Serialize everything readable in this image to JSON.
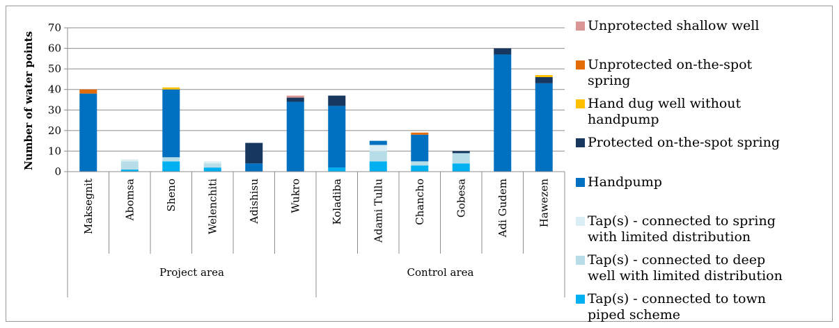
{
  "chart_data": {
    "type": "bar",
    "stacked": true,
    "ylabel": "Number of water points",
    "ylim": [
      0,
      70
    ],
    "yticks": [
      0,
      10,
      20,
      30,
      40,
      50,
      60,
      70
    ],
    "grid": true,
    "legend_position": "right",
    "categories": [
      "Maksegnit",
      "Abomsa",
      "Sheno",
      "Welenchiti",
      "Adishisu",
      "Wukro",
      "Koladiba",
      "Adami Tullu",
      "Chancho",
      "Gobesa",
      "Adi Gudem",
      "Hawezen"
    ],
    "groups": [
      {
        "label": "Project area",
        "start": 0,
        "end": 5
      },
      {
        "label": "Control area",
        "start": 6,
        "end": 11
      }
    ],
    "series": [
      {
        "name": "Tap(s) - connected to town piped scheme",
        "color": "#00b0f0",
        "values": [
          0,
          1,
          5,
          2,
          0,
          0,
          2,
          5,
          3,
          4,
          0,
          0
        ]
      },
      {
        "name": "Tap(s) - connected to deep well with limited distribution",
        "color": "#b7dee8",
        "values": [
          0,
          4,
          2,
          2,
          0,
          0,
          0,
          5,
          2,
          5,
          0,
          0
        ]
      },
      {
        "name": "Tap(s) - connected to spring with limited distribution",
        "color": "#dbeef4",
        "values": [
          0,
          1,
          0,
          1,
          0,
          0,
          0,
          3,
          0,
          0,
          0,
          0
        ]
      },
      {
        "name": "Handpump",
        "color": "#0070c0",
        "values": [
          38,
          0,
          33,
          0,
          4,
          34,
          30,
          2,
          13,
          0,
          57,
          43
        ]
      },
      {
        "name": "Protected on-the-spot spring",
        "color": "#17375e",
        "values": [
          0,
          0,
          0,
          0,
          10,
          2,
          5,
          0,
          0,
          1,
          3,
          3
        ]
      },
      {
        "name": "Hand dug well without handpump",
        "color": "#ffc000",
        "values": [
          0,
          0,
          1,
          0,
          0,
          0,
          0,
          0,
          0,
          0,
          0,
          1
        ]
      },
      {
        "name": "Unprotected on-the-spot spring",
        "color": "#e36c09",
        "values": [
          2,
          0,
          0,
          0,
          0,
          0,
          0,
          0,
          1,
          0,
          0,
          0
        ]
      },
      {
        "name": "Unprotected shallow well",
        "color": "#d99694",
        "values": [
          0,
          0,
          0,
          0,
          0,
          1,
          0,
          0,
          0,
          0,
          0,
          0
        ]
      }
    ],
    "legend_items": [
      {
        "lines": [
          "Unprotected shallow well"
        ],
        "color": "#d99694"
      },
      {
        "lines": [
          "Unprotected on-the-spot",
          "spring"
        ],
        "color": "#e36c09"
      },
      {
        "lines": [
          "Hand dug well without",
          "handpump"
        ],
        "color": "#ffc000"
      },
      {
        "lines": [
          "Protected on-the-spot spring"
        ],
        "color": "#17375e"
      },
      {
        "lines": [
          "Handpump"
        ],
        "color": "#0070c0"
      },
      {
        "lines": [
          "Tap(s) - connected to spring",
          "with limited distribution"
        ],
        "color": "#dbeef4"
      },
      {
        "lines": [
          "Tap(s) - connected to deep",
          "well with limited distribution"
        ],
        "color": "#b7dee8"
      },
      {
        "lines": [
          "Tap(s) - connected to town",
          "piped scheme"
        ],
        "color": "#00b0f0"
      }
    ]
  }
}
